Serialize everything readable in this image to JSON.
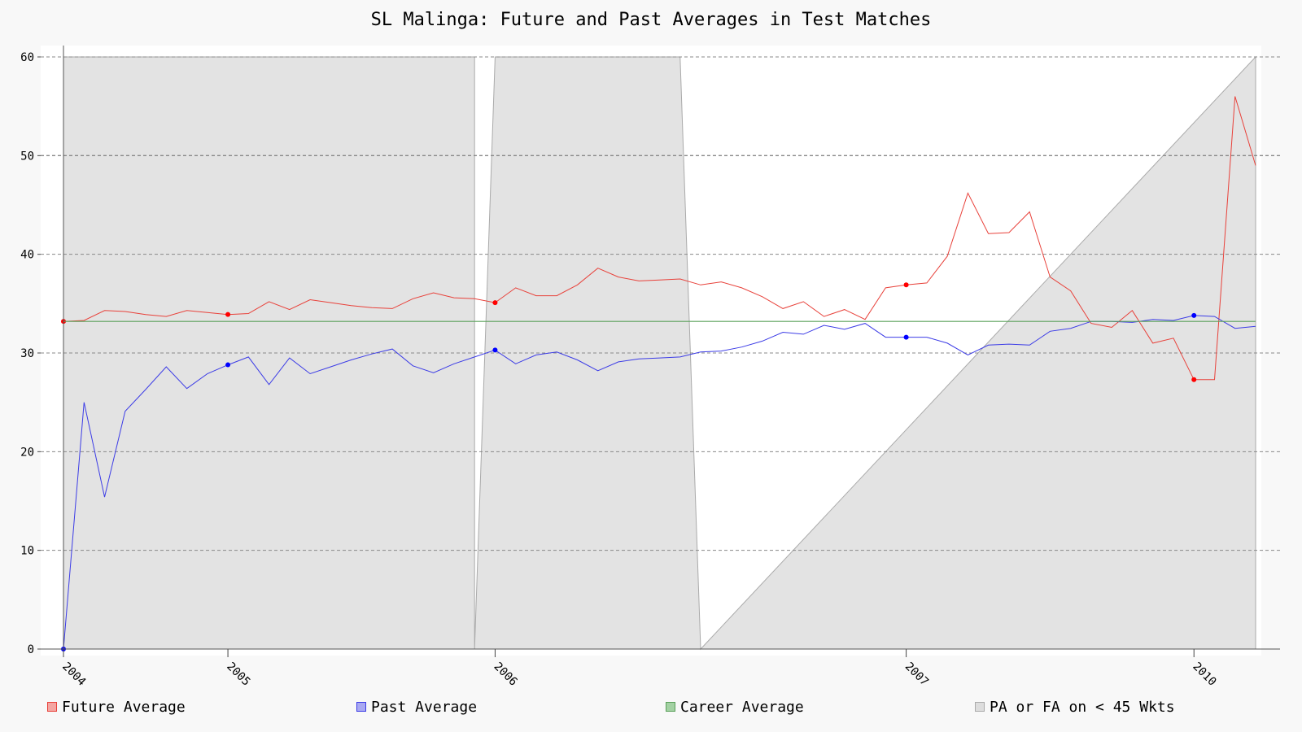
{
  "chart_data": {
    "type": "line",
    "title": "SL Malinga: Future and Past Averages in Test Matches",
    "xlabel": "",
    "ylabel": "",
    "ylim": [
      0,
      60
    ],
    "yticks": [
      0,
      10,
      20,
      30,
      40,
      50,
      60
    ],
    "xlim": [
      0,
      58
    ],
    "xtick_labels": [
      {
        "x": 0,
        "label": "2004"
      },
      {
        "x": 8,
        "label": "2005"
      },
      {
        "x": 21,
        "label": "2006"
      },
      {
        "x": 41,
        "label": "2007"
      },
      {
        "x": 55,
        "label": "2010"
      }
    ],
    "grid": "horizontal dashed",
    "legend_position": "bottom",
    "shaded_band_levels": [
      {
        "x": 0,
        "y": 60
      },
      {
        "x": 20,
        "y": 60
      },
      {
        "x": 20,
        "y": 0
      },
      {
        "x": 21,
        "y": 60
      },
      {
        "x": 30,
        "y": 60
      },
      {
        "x": 31,
        "y": 0
      },
      {
        "x": 58,
        "y": 60
      }
    ],
    "series": [
      {
        "name": "Future Average",
        "color": "#e8413a",
        "values": [
          33.2,
          33.3,
          34.3,
          34.2,
          33.9,
          33.7,
          34.3,
          34.1,
          33.9,
          34.0,
          35.2,
          34.4,
          35.4,
          35.1,
          34.8,
          34.6,
          34.5,
          35.5,
          36.1,
          35.6,
          35.5,
          35.1,
          36.6,
          35.8,
          35.8,
          36.9,
          38.6,
          37.7,
          37.3,
          37.4,
          37.5,
          36.9,
          37.2,
          36.6,
          35.7,
          34.5,
          35.2,
          33.7,
          34.4,
          33.4,
          36.6,
          36.9,
          37.1,
          39.8,
          46.2,
          42.1,
          42.2,
          44.3,
          37.7,
          36.3,
          33.0,
          32.6,
          34.3,
          31.0,
          31.5,
          27.3,
          27.3,
          56.0,
          49.0
        ],
        "markers": [
          0,
          8,
          21,
          41,
          55
        ]
      },
      {
        "name": "Past Average",
        "color": "#3c3ce6",
        "values": [
          0.0,
          25.0,
          15.4,
          24.1,
          26.3,
          28.6,
          26.4,
          27.9,
          28.8,
          29.6,
          26.8,
          29.5,
          27.9,
          28.6,
          29.3,
          29.9,
          30.4,
          28.7,
          28.0,
          28.9,
          29.6,
          30.3,
          28.9,
          29.8,
          30.1,
          29.3,
          28.2,
          29.1,
          29.4,
          29.5,
          29.6,
          30.1,
          30.2,
          30.6,
          31.2,
          32.1,
          31.9,
          32.8,
          32.4,
          33.0,
          31.6,
          31.6,
          31.6,
          31.0,
          29.8,
          30.8,
          30.9,
          30.8,
          32.2,
          32.5,
          33.2,
          33.2,
          33.1,
          33.4,
          33.3,
          33.8,
          33.7,
          32.5,
          32.7
        ],
        "markers": [
          0,
          8,
          21,
          41,
          55
        ]
      },
      {
        "name": "Career Average",
        "color": "#5aa05a",
        "values": [
          33.2,
          33.2
        ],
        "x": [
          0,
          58
        ]
      }
    ],
    "legend": [
      {
        "label": "Future Average",
        "fill": "#f4a6a2",
        "stroke": "#e8413a"
      },
      {
        "label": "Past Average",
        "fill": "#a9a9f2",
        "stroke": "#3c3ce6"
      },
      {
        "label": "Career Average",
        "fill": "#a3d1a3",
        "stroke": "#5aa05a"
      },
      {
        "label": "PA or FA on < 45 Wkts",
        "fill": "#dddddd",
        "stroke": "#aaaaaa"
      }
    ]
  }
}
